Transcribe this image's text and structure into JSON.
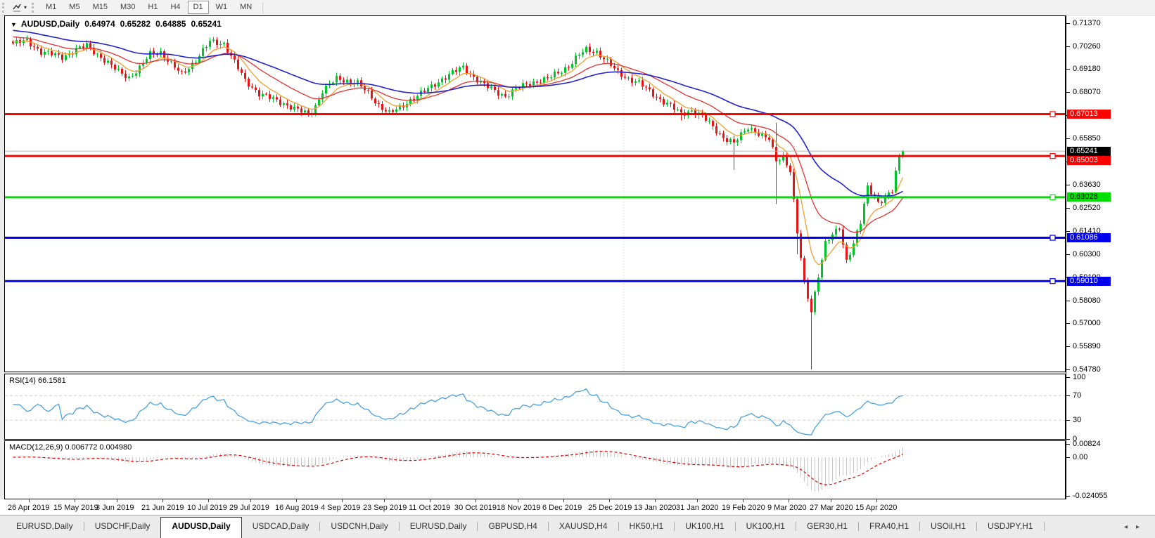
{
  "toolbar": {
    "timeframes": {
      "items": [
        "M1",
        "M5",
        "M15",
        "M30",
        "H1",
        "H4",
        "D1",
        "W1",
        "MN"
      ],
      "active": "D1"
    },
    "tool_icon": "chart-cursor-icon"
  },
  "chart": {
    "title_symbol": "AUDUSD,Daily",
    "ohlc": {
      "open": "0.64974",
      "high": "0.65282",
      "low": "0.64885",
      "close": "0.65241"
    },
    "price_axis_ticks": [
      "0.71370",
      "0.70260",
      "0.69180",
      "0.68070",
      "0.66960",
      "0.65850",
      "0.64740",
      "0.63630",
      "0.62520",
      "0.61410",
      "0.60300",
      "0.59190",
      "0.58080",
      "0.57000",
      "0.55890",
      "0.54780"
    ],
    "hlines": [
      {
        "price": 0.67013,
        "color": "#ff0000",
        "width": 3,
        "tag": "0.67013",
        "tag_bg": "#ff0000",
        "tag_fg": "#ffffff",
        "anchor": true
      },
      {
        "price": 0.65241,
        "color": "#b4b4b4",
        "width": 1,
        "tag": "0.65241",
        "tag_bg": "#000000",
        "tag_fg": "#ffffff",
        "anchor": false
      },
      {
        "price": 0.65003,
        "color": "#ff0000",
        "width": 3,
        "tag": "0.65003",
        "tag_bg": "#ff0000",
        "tag_fg": "#ffffff",
        "anchor": true
      },
      {
        "price": 0.63028,
        "color": "#00dd00",
        "width": 3,
        "tag": "0.63028",
        "tag_bg": "#00e000",
        "tag_fg": "#000000",
        "anchor": true
      },
      {
        "price": 0.61086,
        "color": "#0000ee",
        "width": 3,
        "tag": "0.61086",
        "tag_bg": "#0000ee",
        "tag_fg": "#ffffff",
        "anchor": true
      },
      {
        "price": 0.5901,
        "color": "#0000ee",
        "width": 3,
        "tag": "0.59010",
        "tag_bg": "#0000ee",
        "tag_fg": "#ffffff",
        "anchor": true
      }
    ],
    "colors": {
      "bull": "#00c42a",
      "bear": "#e61414",
      "ma_fast": "#f0a030",
      "ma_mid": "#e03232",
      "ma_slow": "#2222cc"
    }
  },
  "rsi": {
    "label": "RSI(14) 66.1581",
    "period": 14,
    "value": 66.1581,
    "levels": [
      70,
      30
    ],
    "axis_labels": [
      "100",
      "70",
      "30",
      "0"
    ],
    "line_color": "#4aa0e0"
  },
  "macd": {
    "label": "MACD(12,26,9) 0.006772 0.004980",
    "fast": 12,
    "slow": 26,
    "signal_period": 9,
    "macd_value": 0.006772,
    "signal_value": 0.00498,
    "axis_labels": [
      "0.00824",
      "0.00",
      "-0.024055"
    ],
    "axis_values": [
      0.00824,
      0,
      -0.024055
    ],
    "histogram_color": "#c6c6c6",
    "signal_color": "#e00000"
  },
  "date_axis": [
    "26 Apr 2019",
    "15 May 2019",
    "3 Jun 2019",
    "21 Jun 2019",
    "10 Jul 2019",
    "29 Jul 2019",
    "16 Aug 2019",
    "4 Sep 2019",
    "23 Sep 2019",
    "11 Oct 2019",
    "30 Oct 2019",
    "18 Nov 2019",
    "6 Dec 2019",
    "25 Dec 2019",
    "13 Jan 2020",
    "31 Jan 2020",
    "19 Feb 2020",
    "9 Mar 2020",
    "27 Mar 2020",
    "15 Apr 2020"
  ],
  "tabs": [
    {
      "label": "EURUSD,Daily",
      "active": false
    },
    {
      "label": "USDCHF,Daily",
      "active": false
    },
    {
      "label": "AUDUSD,Daily",
      "active": true
    },
    {
      "label": "USDCAD,Daily",
      "active": false
    },
    {
      "label": "USDCNH,Daily",
      "active": false
    },
    {
      "label": "EURUSD,Daily",
      "active": false
    },
    {
      "label": "GBPUSD,H4",
      "active": false
    },
    {
      "label": "XAUUSD,H4",
      "active": false
    },
    {
      "label": "HK50,H1",
      "active": false
    },
    {
      "label": "UK100,H1",
      "active": false
    },
    {
      "label": "UK100,H1",
      "active": false
    },
    {
      "label": "GER30,H1",
      "active": false
    },
    {
      "label": "FRA40,H1",
      "active": false
    },
    {
      "label": "USOil,H1",
      "active": false
    },
    {
      "label": "USDJPY,H1",
      "active": false
    }
  ],
  "tab_scroll": {
    "left": "◂",
    "right": "▸"
  },
  "chart_data": {
    "type": "candlestick",
    "symbol": "AUDUSD",
    "timeframe": "Daily",
    "x_range_dates": [
      "26 Apr 2019",
      "21 Apr 2020"
    ],
    "y_axis_range": [
      0.5478,
      0.7137
    ],
    "bar_count": 254,
    "close_waypoints": [
      [
        0,
        0.704
      ],
      [
        4,
        0.7052
      ],
      [
        8,
        0.7
      ],
      [
        11,
        0.6988
      ],
      [
        14,
        0.6975
      ],
      [
        18,
        0.701
      ],
      [
        21,
        0.703
      ],
      [
        26,
        0.696
      ],
      [
        30,
        0.6905
      ],
      [
        33,
        0.6878
      ],
      [
        36,
        0.692
      ],
      [
        39,
        0.699
      ],
      [
        42,
        0.6998
      ],
      [
        45,
        0.694
      ],
      [
        48,
        0.6892
      ],
      [
        52,
        0.696
      ],
      [
        56,
        0.7048
      ],
      [
        60,
        0.704
      ],
      [
        63,
        0.695
      ],
      [
        66,
        0.6862
      ],
      [
        70,
        0.68
      ],
      [
        74,
        0.6772
      ],
      [
        78,
        0.6745
      ],
      [
        81,
        0.672
      ],
      [
        84,
        0.67
      ],
      [
        86,
        0.674
      ],
      [
        88,
        0.6812
      ],
      [
        92,
        0.687
      ],
      [
        95,
        0.6862
      ],
      [
        98,
        0.685
      ],
      [
        101,
        0.68
      ],
      [
        104,
        0.6745
      ],
      [
        107,
        0.6706
      ],
      [
        110,
        0.673
      ],
      [
        113,
        0.677
      ],
      [
        116,
        0.68
      ],
      [
        119,
        0.6832
      ],
      [
        122,
        0.687
      ],
      [
        125,
        0.69
      ],
      [
        128,
        0.6925
      ],
      [
        131,
        0.688
      ],
      [
        134,
        0.684
      ],
      [
        137,
        0.6812
      ],
      [
        140,
        0.6788
      ],
      [
        143,
        0.682
      ],
      [
        146,
        0.6845
      ],
      [
        149,
        0.6858
      ],
      [
        152,
        0.687
      ],
      [
        155,
        0.69
      ],
      [
        158,
        0.6932
      ],
      [
        161,
        0.6985
      ],
      [
        163,
        0.701
      ],
      [
        166,
        0.7
      ],
      [
        169,
        0.6952
      ],
      [
        172,
        0.69
      ],
      [
        175,
        0.6872
      ],
      [
        178,
        0.685
      ],
      [
        181,
        0.681
      ],
      [
        184,
        0.6772
      ],
      [
        187,
        0.674
      ],
      [
        190,
        0.6702
      ],
      [
        193,
        0.672
      ],
      [
        196,
        0.669
      ],
      [
        199,
        0.664
      ],
      [
        202,
        0.659
      ],
      [
        205,
        0.656
      ],
      [
        207,
        0.66
      ],
      [
        209,
        0.664
      ],
      [
        211,
        0.662
      ],
      [
        213,
        0.6595
      ],
      [
        215,
        0.658
      ],
      [
        217,
        0.648
      ],
      [
        219,
        0.65
      ],
      [
        221,
        0.643
      ],
      [
        223,
        0.613
      ],
      [
        225,
        0.589
      ],
      [
        227,
        0.576
      ],
      [
        229,
        0.593
      ],
      [
        231,
        0.608
      ],
      [
        233,
        0.612
      ],
      [
        235,
        0.616
      ],
      [
        237,
        0.6
      ],
      [
        239,
        0.608
      ],
      [
        241,
        0.618
      ],
      [
        243,
        0.635
      ],
      [
        245,
        0.631
      ],
      [
        246,
        0.628
      ],
      [
        248,
        0.63
      ],
      [
        250,
        0.633
      ],
      [
        251,
        0.642
      ],
      [
        252,
        0.6497
      ],
      [
        253,
        0.65241
      ]
    ],
    "special_bars": [
      {
        "i": 190,
        "low": 0.6671
      },
      {
        "i": 205,
        "low": 0.6434
      },
      {
        "i": 217,
        "high": 0.666,
        "low": 0.627
      },
      {
        "i": 223,
        "low": 0.603
      },
      {
        "i": 227,
        "low": 0.5478
      }
    ],
    "last_bar": {
      "open": 0.64974,
      "high": 0.65282,
      "low": 0.64885,
      "close": 0.65241
    },
    "moving_averages": [
      {
        "name": "fast",
        "period": 8,
        "color": "#f0a030"
      },
      {
        "name": "mid",
        "period": 21,
        "color": "#e03232"
      },
      {
        "name": "slow",
        "period": 48,
        "color": "#2222cc"
      }
    ],
    "indicators": [
      {
        "name": "RSI",
        "period": 14,
        "current": 66.1581,
        "levels": [
          70,
          30
        ],
        "range": [
          0,
          100
        ]
      },
      {
        "name": "MACD",
        "fast": 12,
        "slow": 26,
        "signal": 9,
        "current_macd": 0.006772,
        "current_signal": 0.00498,
        "range": [
          -0.024055,
          0.00824
        ]
      }
    ]
  }
}
